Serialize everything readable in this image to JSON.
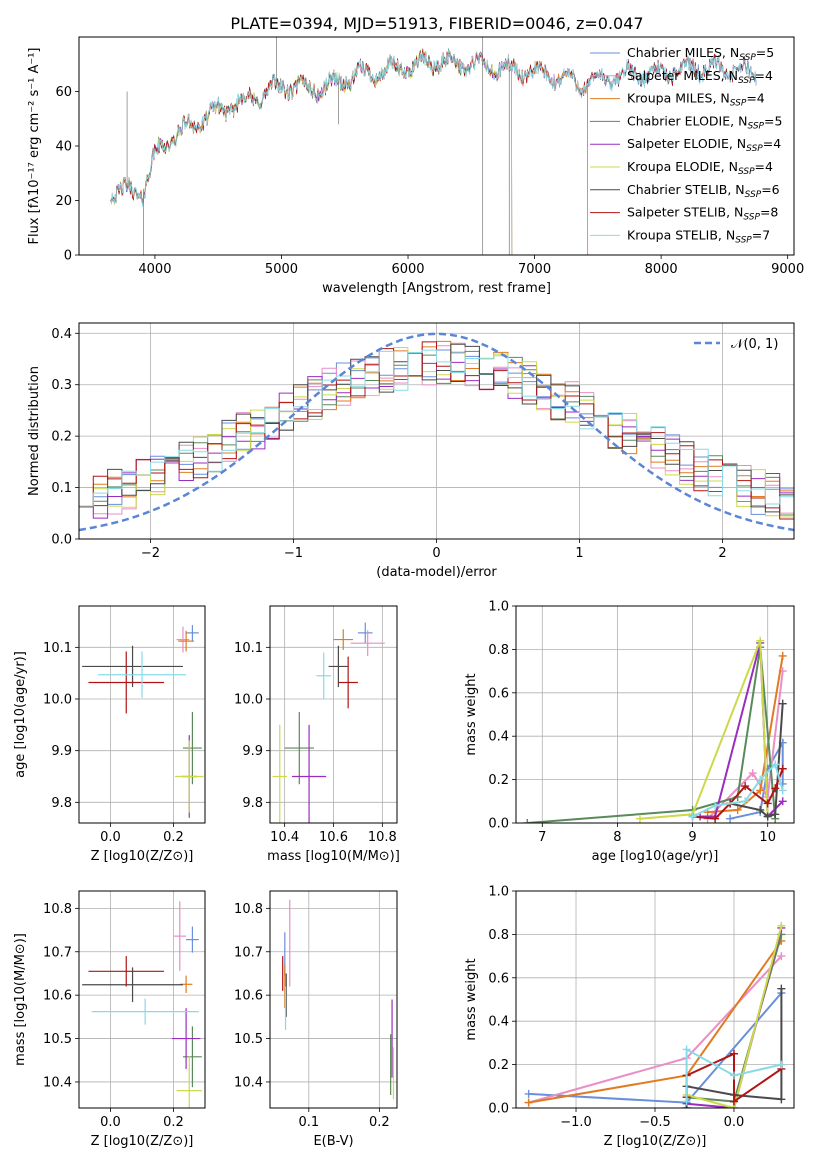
{
  "title": "PLATE=0394, MJD=51913, FIBERID=0046, z=0.047",
  "colors": [
    "#6a8fdb",
    "#e98ec6",
    "#e07b22",
    "#5a8a5a",
    "#9a2cc0",
    "#cbd94a",
    "#4a4a4a",
    "#b01515",
    "#86dbe6"
  ],
  "legend": {
    "entries": [
      "Chabrier MILES, N",
      "Salpeter MILES, N",
      "Kroupa MILES, N",
      "Chabrier ELODIE, N",
      "Salpeter ELODIE, N",
      "Kroupa ELODIE, N",
      "Chabrier STELIB, N",
      "Salpeter STELIB, N",
      "Kroupa STELIB, N"
    ],
    "subscript": "SSP",
    "nssp": [
      "=5",
      "=4",
      "=4",
      "=5",
      "=4",
      "=4",
      "=6",
      "=8",
      "=7"
    ]
  },
  "chart_data": [
    {
      "type": "line",
      "panel": "spectrum",
      "xlabel": "wavelength [Angstrom, rest frame]",
      "ylabel": "Flux [fλ10⁻¹⁷ erg cm⁻² s⁻¹ A⁻¹]",
      "xlim": [
        3400,
        9050
      ],
      "ylim": [
        0,
        80
      ],
      "xticks": [
        "4000",
        "5000",
        "6000",
        "7000",
        "8000",
        "9000"
      ],
      "yticks": [
        "0",
        "20",
        "40",
        "60"
      ],
      "spectrum_trend": {
        "x": [
          3650,
          3800,
          3900,
          4000,
          4100,
          4300,
          4500,
          4800,
          5000,
          5300,
          5600,
          5900,
          6200,
          6500,
          6800,
          7100,
          7400,
          7700,
          8000,
          8300,
          8600,
          8750
        ],
        "y": [
          24,
          23,
          23,
          36,
          42,
          48,
          53,
          58,
          62,
          61,
          66,
          68,
          71,
          70,
          68,
          66,
          63,
          66,
          67,
          69,
          68,
          66
        ]
      },
      "model_end_wavelengths": [
        8750,
        7420,
        7420,
        6820,
        6820,
        6820,
        8750,
        8750,
        8750
      ],
      "grid": false
    },
    {
      "type": "line",
      "panel": "residual-histogram",
      "xlabel": "(data-model)/error",
      "ylabel": "Normed distribution",
      "xlim": [
        -2.5,
        2.5
      ],
      "ylim": [
        0,
        0.42
      ],
      "xticks": [
        "−2",
        "−1",
        "0",
        "1",
        "2"
      ],
      "yticks": [
        "0.0",
        "0.1",
        "0.2",
        "0.3",
        "0.4"
      ],
      "gaussian_label": "𝒩(0, 1)",
      "bin_width": 0.1,
      "grid": true
    },
    {
      "type": "scatter",
      "panel": "age-vs-Z",
      "xlabel": "Z [log10(Z/Z⊙)]",
      "ylabel": "age  [log10(age/yr)]",
      "xlim": [
        -0.1,
        0.3
      ],
      "ylim": [
        9.76,
        10.18
      ],
      "xticks": [
        "0.0",
        "0.2"
      ],
      "yticks": [
        "9.8",
        "9.9",
        "10.0",
        "10.1"
      ],
      "points": [
        {
          "x": 0.26,
          "y": 10.128,
          "xerr": 0.02,
          "yerr": 0.015
        },
        {
          "x": 0.23,
          "y": 10.115,
          "xerr": 0.02,
          "yerr": 0.025
        },
        {
          "x": 0.24,
          "y": 10.112,
          "xerr": 0.025,
          "yerr": 0.02
        },
        {
          "x": 0.26,
          "y": 9.905,
          "xerr": 0.03,
          "yerr": 0.07
        },
        {
          "x": 0.25,
          "y": 9.85,
          "xerr": 0.025,
          "yerr": 0.08
        },
        {
          "x": 0.25,
          "y": 9.85,
          "xerr": 0.045,
          "yerr": 0.07
        },
        {
          "x": 0.07,
          "y": 10.063,
          "xerr": 0.16,
          "yerr": 0.04
        },
        {
          "x": 0.05,
          "y": 10.032,
          "xerr": 0.12,
          "yerr": 0.06
        },
        {
          "x": 0.1,
          "y": 10.047,
          "xerr": 0.14,
          "yerr": 0.045
        }
      ]
    },
    {
      "type": "scatter",
      "panel": "age-vs-mass",
      "xlabel": "mass [log10(M/M⊙)]",
      "ylabel": "",
      "xlim": [
        10.34,
        10.86
      ],
      "ylim": [
        9.76,
        10.18
      ],
      "xticks": [
        "10.4",
        "10.6",
        "10.8"
      ],
      "yticks": [
        "9.8",
        "9.9",
        "10.0",
        "10.1"
      ],
      "points": [
        {
          "x": 10.73,
          "y": 10.128,
          "xerr": 0.03,
          "yerr": 0.02
        },
        {
          "x": 10.74,
          "y": 10.108,
          "xerr": 0.07,
          "yerr": 0.025
        },
        {
          "x": 10.64,
          "y": 10.115,
          "xerr": 0.04,
          "yerr": 0.02
        },
        {
          "x": 10.46,
          "y": 9.905,
          "xerr": 0.06,
          "yerr": 0.07
        },
        {
          "x": 10.5,
          "y": 9.85,
          "xerr": 0.07,
          "yerr": 0.1
        },
        {
          "x": 10.38,
          "y": 9.85,
          "xerr": 0.03,
          "yerr": 0.1
        },
        {
          "x": 10.62,
          "y": 10.063,
          "xerr": 0.04,
          "yerr": 0.04
        },
        {
          "x": 10.66,
          "y": 10.032,
          "xerr": 0.04,
          "yerr": 0.05
        },
        {
          "x": 10.56,
          "y": 10.045,
          "xerr": 0.03,
          "yerr": 0.045
        }
      ]
    },
    {
      "type": "line",
      "panel": "mass-weight-vs-age",
      "xlabel": "age  [log10(age/yr)]",
      "ylabel": "mass weight",
      "xlim": [
        6.65,
        10.35
      ],
      "ylim": [
        0,
        1
      ],
      "xticks": [
        "7",
        "8",
        "9",
        "10"
      ],
      "yticks": [
        "0.0",
        "0.2",
        "0.4",
        "0.6",
        "0.8",
        "1.0"
      ],
      "series": [
        {
          "x": [
            9.5,
            9.9,
            10.0,
            10.2,
            10.2
          ],
          "y": [
            0.02,
            0.05,
            0.25,
            0.37,
            0.18
          ]
        },
        {
          "x": [
            9.2,
            9.8,
            10.0,
            10.2
          ],
          "y": [
            0.02,
            0.23,
            0.12,
            0.7
          ]
        },
        {
          "x": [
            9.2,
            9.6,
            9.9,
            10.2
          ],
          "y": [
            0.05,
            0.06,
            0.15,
            0.77
          ]
        },
        {
          "x": [
            6.8,
            9.0,
            9.6,
            9.9,
            10.1
          ],
          "y": [
            0.0,
            0.06,
            0.12,
            0.81,
            0.02
          ]
        },
        {
          "x": [
            9.1,
            9.3,
            9.9,
            10.0,
            10.2
          ],
          "y": [
            0.03,
            0.03,
            0.83,
            0.03,
            0.1
          ]
        },
        {
          "x": [
            8.3,
            9.0,
            9.9,
            10.0
          ],
          "y": [
            0.02,
            0.04,
            0.84,
            0.03
          ]
        },
        {
          "x": [
            9.5,
            9.9,
            10.0,
            10.1,
            10.2
          ],
          "y": [
            0.09,
            0.06,
            0.03,
            0.04,
            0.55
          ]
        },
        {
          "x": [
            9.0,
            9.3,
            9.5,
            9.7,
            10.0,
            10.1,
            10.2
          ],
          "y": [
            0.03,
            0.02,
            0.09,
            0.17,
            0.09,
            0.16,
            0.25
          ]
        },
        {
          "x": [
            9.0,
            9.3,
            9.7,
            9.9,
            10.1,
            10.2
          ],
          "y": [
            0.03,
            0.08,
            0.1,
            0.2,
            0.27,
            0.15
          ]
        }
      ]
    },
    {
      "type": "scatter",
      "panel": "mass-vs-Z",
      "xlabel": "Z [log10(Z/Z⊙)]",
      "ylabel": "mass [log10(M/M⊙)]",
      "xlim": [
        -0.1,
        0.3
      ],
      "ylim": [
        10.34,
        10.84
      ],
      "xticks": [
        "0.0",
        "0.2"
      ],
      "yticks": [
        "10.4",
        "10.5",
        "10.6",
        "10.7",
        "10.8"
      ],
      "points": [
        {
          "x": 0.26,
          "y": 10.728,
          "xerr": 0.02,
          "yerr": 0.03
        },
        {
          "x": 0.22,
          "y": 10.736,
          "xerr": 0.02,
          "yerr": 0.08
        },
        {
          "x": 0.24,
          "y": 10.625,
          "xerr": 0.02,
          "yerr": 0.02
        },
        {
          "x": 0.26,
          "y": 10.458,
          "xerr": 0.03,
          "yerr": 0.07
        },
        {
          "x": 0.24,
          "y": 10.5,
          "xerr": 0.045,
          "yerr": 0.07
        },
        {
          "x": 0.25,
          "y": 10.38,
          "xerr": 0.04,
          "yerr": 0.08
        },
        {
          "x": 0.07,
          "y": 10.624,
          "xerr": 0.16,
          "yerr": 0.04
        },
        {
          "x": 0.05,
          "y": 10.655,
          "xerr": 0.12,
          "yerr": 0.035
        },
        {
          "x": 0.11,
          "y": 10.562,
          "xerr": 0.17,
          "yerr": 0.03
        }
      ]
    },
    {
      "type": "scatter",
      "panel": "mass-vs-EBV",
      "xlabel": "E(B-V)",
      "ylabel": "",
      "xlim": [
        0.045,
        0.225
      ],
      "ylim": [
        10.34,
        10.84
      ],
      "xticks": [
        "0.1",
        "0.2"
      ],
      "yticks": [
        "10.4",
        "10.5",
        "10.6",
        "10.7",
        "10.8"
      ],
      "points": [
        {
          "x": 0.066,
          "y": 10.695,
          "xerr": 0.0,
          "yerr": 0.05
        },
        {
          "x": 0.073,
          "y": 10.72,
          "xerr": 0.0,
          "yerr": 0.1
        },
        {
          "x": 0.066,
          "y": 10.62,
          "xerr": 0.0,
          "yerr": 0.05
        },
        {
          "x": 0.216,
          "y": 10.44,
          "xerr": 0.0,
          "yerr": 0.07
        },
        {
          "x": 0.218,
          "y": 10.5,
          "xerr": 0.0,
          "yerr": 0.09
        },
        {
          "x": 0.22,
          "y": 10.42,
          "xerr": 0.0,
          "yerr": 0.06
        },
        {
          "x": 0.068,
          "y": 10.6,
          "xerr": 0.0,
          "yerr": 0.05
        },
        {
          "x": 0.063,
          "y": 10.65,
          "xerr": 0.0,
          "yerr": 0.04
        },
        {
          "x": 0.067,
          "y": 10.57,
          "xerr": 0.0,
          "yerr": 0.05
        }
      ]
    },
    {
      "type": "line",
      "panel": "mass-weight-vs-Z",
      "xlabel": "Z [log10(Z/Z⊙)]",
      "ylabel": "mass weight",
      "xlim": [
        -1.38,
        0.38
      ],
      "ylim": [
        0,
        1
      ],
      "xticks": [
        "−1.0",
        "−0.5",
        "0.0"
      ],
      "yticks": [
        "0.0",
        "0.2",
        "0.4",
        "0.6",
        "0.8",
        "1.0"
      ],
      "series": [
        {
          "x": [
            -1.3,
            -0.3,
            0.3
          ],
          "y": [
            0.065,
            0.025,
            0.53
          ]
        },
        {
          "x": [
            -1.3,
            -0.3,
            0.3
          ],
          "y": [
            0.025,
            0.23,
            0.7
          ]
        },
        {
          "x": [
            -1.3,
            -0.3,
            0.3
          ],
          "y": [
            0.025,
            0.15,
            0.77
          ]
        },
        {
          "x": [
            -0.3,
            0.0,
            0.3
          ],
          "y": [
            0.05,
            0.03,
            0.8
          ]
        },
        {
          "x": [
            -0.3,
            0.0,
            0.3
          ],
          "y": [
            0.02,
            0.0,
            0.83
          ]
        },
        {
          "x": [
            -0.3,
            0.0,
            0.3
          ],
          "y": [
            0.06,
            0.0,
            0.84
          ]
        },
        {
          "x": [
            -0.3,
            -0.3,
            0.0,
            0.3,
            0.3
          ],
          "y": [
            0.0,
            0.1,
            0.06,
            0.04,
            0.55
          ]
        },
        {
          "x": [
            -0.3,
            -0.3,
            0.0,
            0.0,
            0.3
          ],
          "y": [
            0.05,
            0.15,
            0.25,
            0.03,
            0.18
          ]
        },
        {
          "x": [
            -0.3,
            -0.3,
            0.0,
            0.3
          ],
          "y": [
            0.03,
            0.27,
            0.15,
            0.2
          ]
        }
      ]
    }
  ]
}
